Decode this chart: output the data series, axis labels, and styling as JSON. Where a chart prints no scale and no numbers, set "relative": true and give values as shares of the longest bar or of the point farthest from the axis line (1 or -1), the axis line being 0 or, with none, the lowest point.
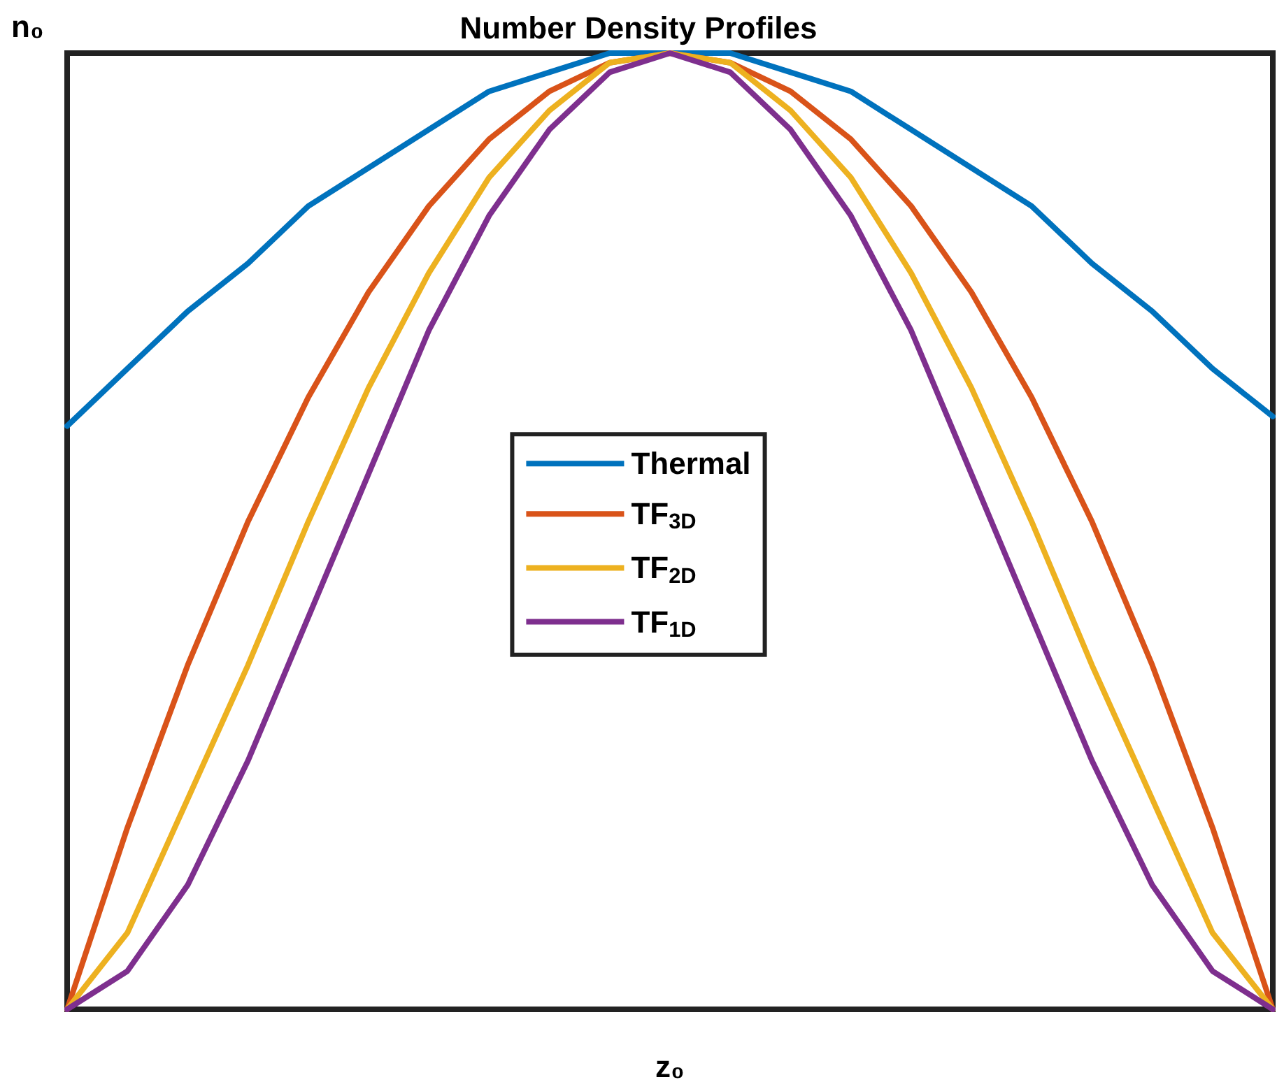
{
  "chart_data": {
    "type": "line",
    "title": "Number Density Profiles",
    "relative": true,
    "categories": [
      null,
      null,
      null,
      null,
      null,
      null,
      null,
      null,
      null,
      null,
      null,
      null,
      null,
      null,
      null,
      null,
      null,
      null,
      null,
      null,
      null
    ],
    "series": [
      {
        "name": "Thermal",
        "color": "#0072bd",
        "values": [
          0.61,
          0.67,
          0.73,
          0.78,
          0.84,
          0.88,
          0.92,
          0.96,
          0.98,
          1.0,
          1.0,
          1.0,
          0.98,
          0.96,
          0.92,
          0.88,
          0.84,
          0.78,
          0.73,
          0.67,
          0.62
        ]
      },
      {
        "name": "TF$_{3D}$",
        "color": "#d95319",
        "values": [
          0,
          0.19,
          0.36,
          0.51,
          0.64,
          0.75,
          0.84,
          0.91,
          0.96,
          0.99,
          1,
          0.99,
          0.96,
          0.91,
          0.84,
          0.75,
          0.64,
          0.51,
          0.36,
          0.19,
          0
        ]
      },
      {
        "name": "TF$_{2D}$",
        "color": "#edb120",
        "values": [
          0,
          0.08,
          0.22,
          0.36,
          0.51,
          0.65,
          0.77,
          0.87,
          0.94,
          0.99,
          1,
          0.99,
          0.94,
          0.87,
          0.77,
          0.65,
          0.51,
          0.36,
          0.22,
          0.08,
          0
        ]
      },
      {
        "name": "TF$_{1D}$",
        "color": "#7e2f8e",
        "values": [
          0,
          0.04,
          0.13,
          0.26,
          0.41,
          0.56,
          0.71,
          0.83,
          0.92,
          0.98,
          1,
          0.98,
          0.92,
          0.83,
          0.71,
          0.56,
          0.41,
          0.26,
          0.13,
          0.04,
          0
        ]
      }
    ],
    "xlabel": "z₀",
    "annotations": [
      "n₀"
    ],
    "legend": "center",
    "grid": false,
    "marker": "none",
    "line_style": "solid",
    "tick_labels": "x"
  }
}
